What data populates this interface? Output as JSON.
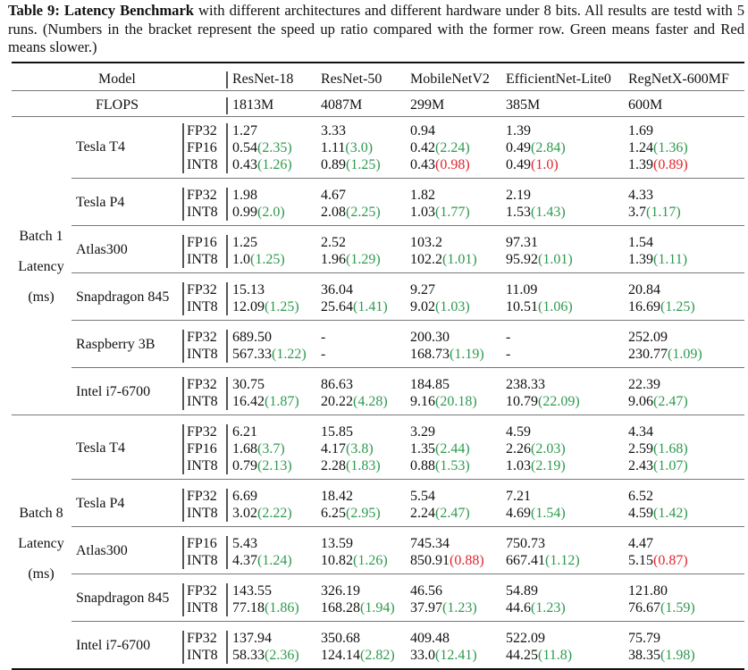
{
  "caption": {
    "label": "Table 9:",
    "title": "Latency Benchmark",
    "text": " with different architectures and different hardware under 8 bits. All results are testd with 5 runs. (Numbers in the bracket represent the speed up ratio compared with the former row. Green means faster and Red means slower.)"
  },
  "colors": {
    "faster": "#2e9a4e",
    "slower": "#e0262e"
  },
  "header": {
    "model_label": "Model",
    "flops_label": "FLOPS",
    "models": [
      "ResNet-18",
      "ResNet-50",
      "MobileNetV2",
      "EfficientNet-Lite0",
      "RegNetX-600MF"
    ],
    "flops": [
      "1813M",
      "4087M",
      "299M",
      "385M",
      "600M"
    ]
  },
  "groups": [
    {
      "label_lines": [
        "Batch 1",
        "Latency",
        "(ms)"
      ],
      "hardware": [
        {
          "name": "Tesla T4",
          "rows": [
            {
              "precision": "FP32",
              "cells": [
                [
                  "1.27",
                  ""
                ],
                [
                  "3.33",
                  ""
                ],
                [
                  "0.94",
                  ""
                ],
                [
                  "1.39",
                  ""
                ],
                [
                  "1.69",
                  ""
                ]
              ]
            },
            {
              "precision": "FP16",
              "cells": [
                [
                  "0.54",
                  "2.35",
                  "g"
                ],
                [
                  "1.11",
                  "3.0",
                  "g"
                ],
                [
                  "0.42",
                  "2.24",
                  "g"
                ],
                [
                  "0.49",
                  "2.84",
                  "g"
                ],
                [
                  "1.24",
                  "1.36",
                  "g"
                ]
              ]
            },
            {
              "precision": "INT8",
              "cells": [
                [
                  "0.43",
                  "1.26",
                  "g"
                ],
                [
                  "0.89",
                  "1.25",
                  "g"
                ],
                [
                  "0.43",
                  "0.98",
                  "r"
                ],
                [
                  "0.49",
                  "1.0",
                  "r"
                ],
                [
                  "1.39",
                  "0.89",
                  "r"
                ]
              ]
            }
          ]
        },
        {
          "name": "Tesla P4",
          "rows": [
            {
              "precision": "FP32",
              "cells": [
                [
                  "1.98",
                  ""
                ],
                [
                  "4.67",
                  ""
                ],
                [
                  "1.82",
                  ""
                ],
                [
                  "2.19",
                  ""
                ],
                [
                  "4.33",
                  ""
                ]
              ]
            },
            {
              "precision": "INT8",
              "cells": [
                [
                  "0.99",
                  "2.0",
                  "g"
                ],
                [
                  "2.08",
                  "2.25",
                  "g"
                ],
                [
                  "1.03",
                  "1.77",
                  "g"
                ],
                [
                  "1.53",
                  "1.43",
                  "g"
                ],
                [
                  "3.7",
                  "1.17",
                  "g"
                ]
              ]
            }
          ]
        },
        {
          "name": "Atlas300",
          "rows": [
            {
              "precision": "FP16",
              "cells": [
                [
                  "1.25",
                  ""
                ],
                [
                  "2.52",
                  ""
                ],
                [
                  "103.2",
                  ""
                ],
                [
                  "97.31",
                  ""
                ],
                [
                  "1.54",
                  ""
                ]
              ]
            },
            {
              "precision": "INT8",
              "cells": [
                [
                  "1.0",
                  "1.25",
                  "g"
                ],
                [
                  "1.96",
                  "1.29",
                  "g"
                ],
                [
                  "102.2",
                  "1.01",
                  "g"
                ],
                [
                  "95.92",
                  "1.01",
                  "g"
                ],
                [
                  "1.39",
                  "1.11",
                  "g"
                ]
              ]
            }
          ]
        },
        {
          "name": "Snapdragon 845",
          "rows": [
            {
              "precision": "FP32",
              "cells": [
                [
                  "15.13",
                  ""
                ],
                [
                  "36.04",
                  ""
                ],
                [
                  "9.27",
                  ""
                ],
                [
                  "11.09",
                  ""
                ],
                [
                  "20.84",
                  ""
                ]
              ]
            },
            {
              "precision": "INT8",
              "cells": [
                [
                  "12.09",
                  "1.25",
                  "g"
                ],
                [
                  "25.64",
                  "1.41",
                  "g"
                ],
                [
                  "9.02",
                  "1.03",
                  "g"
                ],
                [
                  "10.51",
                  "1.06",
                  "g"
                ],
                [
                  "16.69",
                  "1.25",
                  "g"
                ]
              ]
            }
          ]
        },
        {
          "name": "Raspberry 3B",
          "rows": [
            {
              "precision": "FP32",
              "cells": [
                [
                  "689.50",
                  ""
                ],
                [
                  "-",
                  ""
                ],
                [
                  "200.30",
                  ""
                ],
                [
                  "-",
                  ""
                ],
                [
                  "252.09",
                  ""
                ]
              ]
            },
            {
              "precision": "INT8",
              "cells": [
                [
                  "567.33",
                  "1.22",
                  "g"
                ],
                [
                  "-",
                  ""
                ],
                [
                  "168.73",
                  "1.19",
                  "g"
                ],
                [
                  "-",
                  ""
                ],
                [
                  "230.77",
                  "1.09",
                  "g"
                ]
              ]
            }
          ]
        },
        {
          "name": "Intel i7-6700",
          "rows": [
            {
              "precision": "FP32",
              "cells": [
                [
                  "30.75",
                  ""
                ],
                [
                  "86.63",
                  ""
                ],
                [
                  "184.85",
                  ""
                ],
                [
                  "238.33",
                  ""
                ],
                [
                  "22.39",
                  ""
                ]
              ]
            },
            {
              "precision": "INT8",
              "cells": [
                [
                  "16.42",
                  "1.87",
                  "g"
                ],
                [
                  "20.22",
                  "4.28",
                  "g"
                ],
                [
                  "9.16",
                  "20.18",
                  "g"
                ],
                [
                  "10.79",
                  "22.09",
                  "g"
                ],
                [
                  "9.06",
                  "2.47",
                  "g"
                ]
              ]
            }
          ]
        }
      ]
    },
    {
      "label_lines": [
        "Batch 8",
        "Latency",
        "(ms)"
      ],
      "hardware": [
        {
          "name": "Tesla T4",
          "rows": [
            {
              "precision": "FP32",
              "cells": [
                [
                  "6.21",
                  ""
                ],
                [
                  "15.85",
                  ""
                ],
                [
                  "3.29",
                  ""
                ],
                [
                  "4.59",
                  ""
                ],
                [
                  "4.34",
                  ""
                ]
              ]
            },
            {
              "precision": "FP16",
              "cells": [
                [
                  "1.68",
                  "3.7",
                  "g"
                ],
                [
                  "4.17",
                  "3.8",
                  "g"
                ],
                [
                  "1.35",
                  "2.44",
                  "g"
                ],
                [
                  "2.26",
                  "2.03",
                  "g"
                ],
                [
                  "2.59",
                  "1.68",
                  "g"
                ]
              ]
            },
            {
              "precision": "INT8",
              "cells": [
                [
                  "0.79",
                  "2.13",
                  "g"
                ],
                [
                  "2.28",
                  "1.83",
                  "g"
                ],
                [
                  "0.88",
                  "1.53",
                  "g"
                ],
                [
                  "1.03",
                  "2.19",
                  "g"
                ],
                [
                  "2.43",
                  "1.07",
                  "g"
                ]
              ]
            }
          ]
        },
        {
          "name": "Tesla P4",
          "rows": [
            {
              "precision": "FP32",
              "cells": [
                [
                  "6.69",
                  ""
                ],
                [
                  "18.42",
                  ""
                ],
                [
                  "5.54",
                  ""
                ],
                [
                  "7.21",
                  ""
                ],
                [
                  "6.52",
                  ""
                ]
              ]
            },
            {
              "precision": "INT8",
              "cells": [
                [
                  "3.02",
                  "2.22",
                  "g"
                ],
                [
                  "6.25",
                  "2.95",
                  "g"
                ],
                [
                  "2.24",
                  "2.47",
                  "g"
                ],
                [
                  "4.69",
                  "1.54",
                  "g"
                ],
                [
                  "4.59",
                  "1.42",
                  "g"
                ]
              ]
            }
          ]
        },
        {
          "name": "Atlas300",
          "rows": [
            {
              "precision": "FP16",
              "cells": [
                [
                  "5.43",
                  ""
                ],
                [
                  "13.59",
                  ""
                ],
                [
                  "745.34",
                  ""
                ],
                [
                  "750.73",
                  ""
                ],
                [
                  "4.47",
                  ""
                ]
              ]
            },
            {
              "precision": "INT8",
              "cells": [
                [
                  "4.37",
                  "1.24",
                  "g"
                ],
                [
                  "10.82",
                  "1.26",
                  "g"
                ],
                [
                  "850.91",
                  "0.88",
                  "r"
                ],
                [
                  "667.41",
                  "1.12",
                  "g"
                ],
                [
                  "5.15",
                  "0.87",
                  "r"
                ]
              ]
            }
          ]
        },
        {
          "name": "Snapdragon 845",
          "rows": [
            {
              "precision": "FP32",
              "cells": [
                [
                  "143.55",
                  ""
                ],
                [
                  "326.19",
                  ""
                ],
                [
                  "46.56",
                  ""
                ],
                [
                  "54.89",
                  ""
                ],
                [
                  "121.80",
                  ""
                ]
              ]
            },
            {
              "precision": "INT8",
              "cells": [
                [
                  "77.18",
                  "1.86",
                  "g"
                ],
                [
                  "168.28",
                  "1.94",
                  "g"
                ],
                [
                  "37.97",
                  "1.23",
                  "g"
                ],
                [
                  "44.6",
                  "1.23",
                  "g"
                ],
                [
                  "76.67",
                  "1.59",
                  "g"
                ]
              ]
            }
          ]
        },
        {
          "name": "Intel i7-6700",
          "rows": [
            {
              "precision": "FP32",
              "cells": [
                [
                  "137.94",
                  ""
                ],
                [
                  "350.68",
                  ""
                ],
                [
                  "409.48",
                  ""
                ],
                [
                  "522.09",
                  ""
                ],
                [
                  "75.79",
                  ""
                ]
              ]
            },
            {
              "precision": "INT8",
              "cells": [
                [
                  "58.33",
                  "2.36",
                  "g"
                ],
                [
                  "124.14",
                  "2.82",
                  "g"
                ],
                [
                  "33.0",
                  "12.41",
                  "g"
                ],
                [
                  "44.25",
                  "11.8",
                  "g"
                ],
                [
                  "38.35",
                  "1.98",
                  "g"
                ]
              ]
            }
          ]
        }
      ]
    }
  ]
}
